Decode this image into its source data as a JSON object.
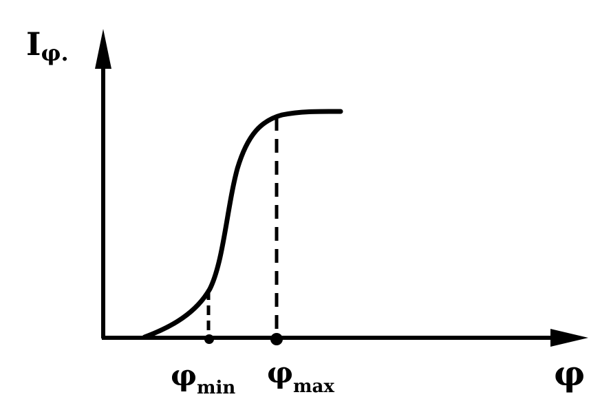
{
  "y_axis_label": {
    "main": "I",
    "sub": "φ."
  },
  "x_axis_label": "φ",
  "markers": [
    {
      "main": "φ",
      "sub": "min"
    },
    {
      "main": "φ",
      "sub": "max"
    }
  ]
}
